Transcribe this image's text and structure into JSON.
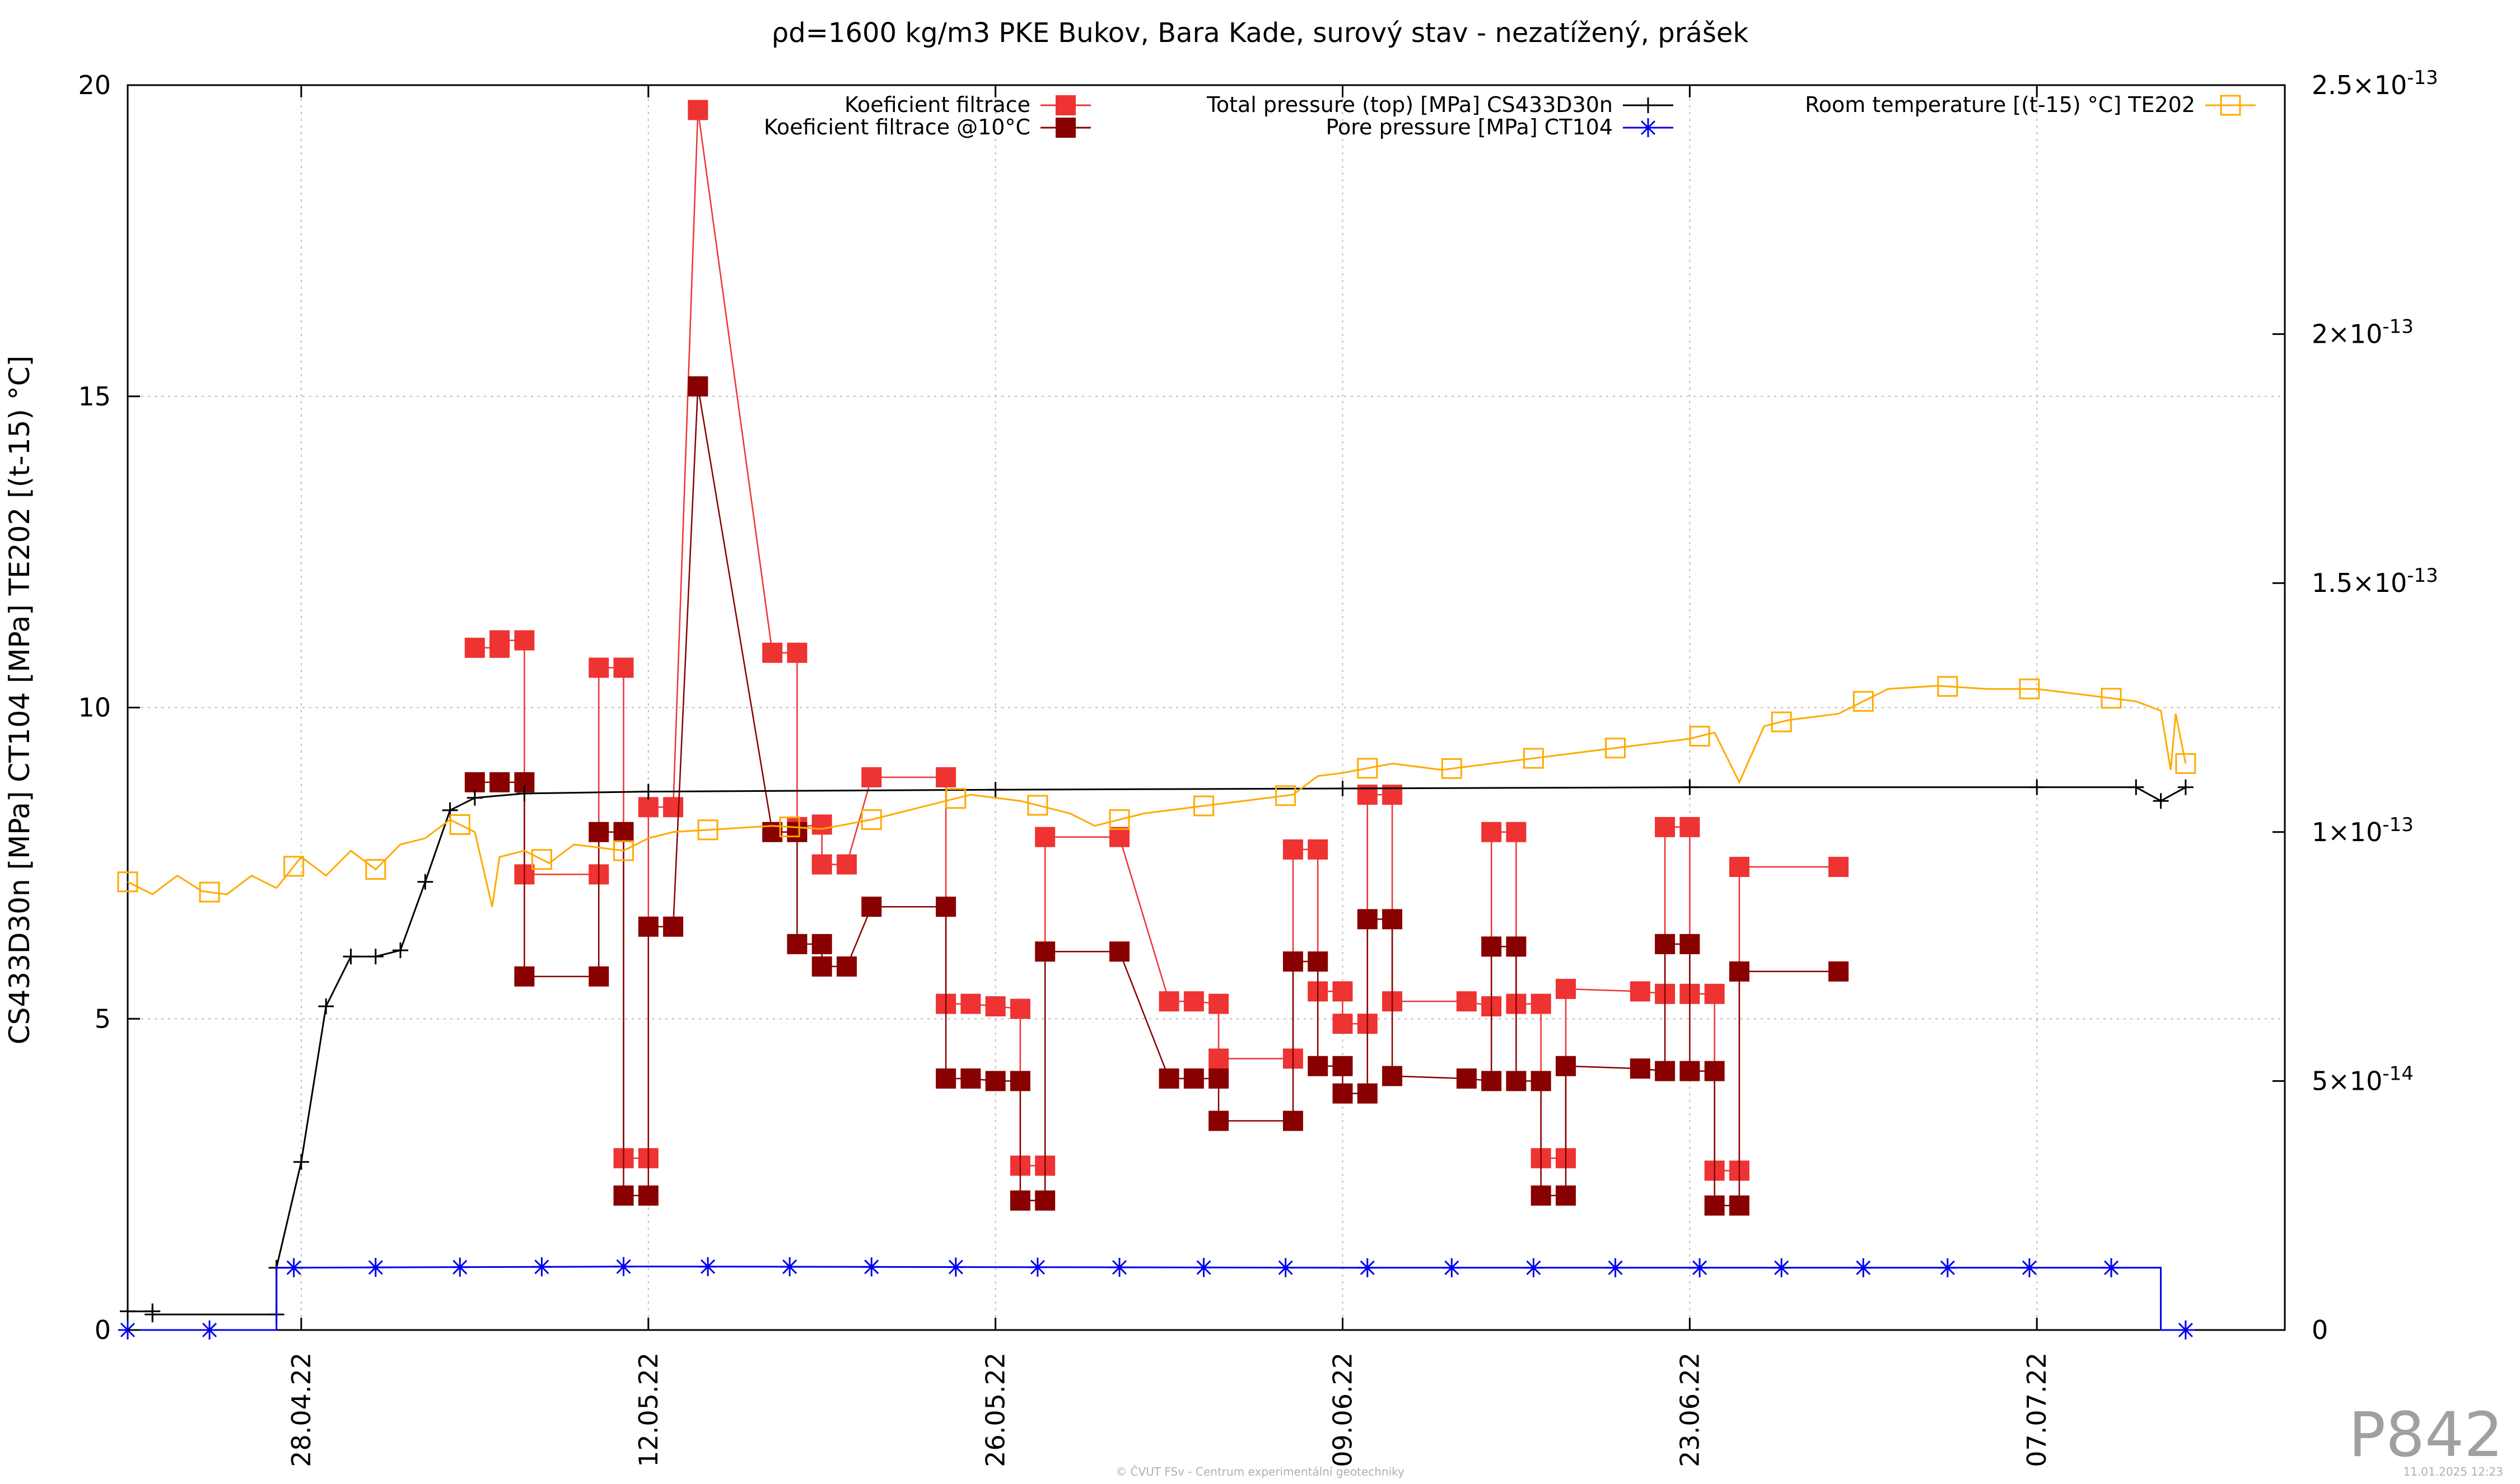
{
  "chart_data": {
    "type": "line",
    "title": "ρd=1600 kg/m3 PKE Bukov, Bara Kade, surový stav - nezatížený, prášek",
    "xlabel": "",
    "ylabel": "CS433D30n [MPa] CT104 [MPa] TE202 [(t-15) °C]",
    "y2label": "",
    "x_range": [
      "2022-04-21",
      "2022-07-17"
    ],
    "ylim": [
      0,
      20
    ],
    "y2lim": [
      0,
      2.5e-13
    ],
    "x_ticks": [
      {
        "date": "2022-04-28",
        "label": "28.04.22"
      },
      {
        "date": "2022-05-12",
        "label": "12.05.22"
      },
      {
        "date": "2022-05-26",
        "label": "26.05.22"
      },
      {
        "date": "2022-06-09",
        "label": "09.06.22"
      },
      {
        "date": "2022-06-23",
        "label": "23.06.22"
      },
      {
        "date": "2022-07-07",
        "label": "07.07.22"
      }
    ],
    "y_ticks": [
      {
        "value": 0,
        "label": "0"
      },
      {
        "value": 5,
        "label": "5"
      },
      {
        "value": 10,
        "label": "10"
      },
      {
        "value": 15,
        "label": "15"
      },
      {
        "value": 20,
        "label": "20"
      }
    ],
    "y2_ticks": [
      {
        "value": 0,
        "label": "0",
        "exp": ""
      },
      {
        "value": 5e-14,
        "label": "5×10",
        "exp": "-14"
      },
      {
        "value": 1e-13,
        "label": "1×10",
        "exp": "-13"
      },
      {
        "value": 1.5e-13,
        "label": "1.5×10",
        "exp": "-13"
      },
      {
        "value": 2e-13,
        "label": "2×10",
        "exp": "-13"
      },
      {
        "value": 2.5e-13,
        "label": "2.5×10",
        "exp": "-13"
      }
    ],
    "grid": true,
    "legend_placement": "top",
    "series": [
      {
        "name": "Koeficient filtrace",
        "axis": "y2",
        "color": "#ee3333",
        "marker": "filled-square",
        "points": [
          [
            "2022-05-05",
            1.37e-13
          ],
          [
            "2022-05-06",
            1.37e-13
          ],
          [
            "2022-05-06",
            1.385e-13
          ],
          [
            "2022-05-07",
            1.385e-13
          ],
          [
            "2022-05-07",
            9.15e-14
          ],
          [
            "2022-05-10",
            9.15e-14
          ],
          [
            "2022-05-10",
            1.33e-13
          ],
          [
            "2022-05-11",
            1.33e-13
          ],
          [
            "2022-05-11",
            3.45e-14
          ],
          [
            "2022-05-12",
            3.45e-14
          ],
          [
            "2022-05-12",
            1.05e-13
          ],
          [
            "2022-05-13",
            1.05e-13
          ],
          [
            "2022-05-14",
            2.45e-13
          ],
          [
            "2022-05-17",
            1.36e-13
          ],
          [
            "2022-05-18",
            1.36e-13
          ],
          [
            "2022-05-18",
            1.01e-13
          ],
          [
            "2022-05-19",
            1.015e-13
          ],
          [
            "2022-05-19",
            9.35e-14
          ],
          [
            "2022-05-20",
            9.35e-14
          ],
          [
            "2022-05-21",
            1.11e-13
          ],
          [
            "2022-05-24",
            1.11e-13
          ],
          [
            "2022-05-24",
            6.55e-14
          ],
          [
            "2022-05-25",
            6.55e-14
          ],
          [
            "2022-05-26",
            6.5e-14
          ],
          [
            "2022-05-27",
            6.45e-14
          ],
          [
            "2022-05-27",
            3.3e-14
          ],
          [
            "2022-05-28",
            3.3e-14
          ],
          [
            "2022-05-28",
            9.9e-14
          ],
          [
            "2022-05-31",
            9.9e-14
          ],
          [
            "2022-06-02",
            6.6e-14
          ],
          [
            "2022-06-03",
            6.6e-14
          ],
          [
            "2022-06-04",
            6.55e-14
          ],
          [
            "2022-06-04",
            5.45e-14
          ],
          [
            "2022-06-07",
            5.45e-14
          ],
          [
            "2022-06-07",
            9.65e-14
          ],
          [
            "2022-06-08",
            9.65e-14
          ],
          [
            "2022-06-08",
            6.8e-14
          ],
          [
            "2022-06-09",
            6.8e-14
          ],
          [
            "2022-06-09",
            6.15e-14
          ],
          [
            "2022-06-10",
            6.15e-14
          ],
          [
            "2022-06-10",
            1.075e-13
          ],
          [
            "2022-06-11",
            1.075e-13
          ],
          [
            "2022-06-11",
            6.6e-14
          ],
          [
            "2022-06-14",
            6.6e-14
          ],
          [
            "2022-06-15",
            6.5e-14
          ],
          [
            "2022-06-15",
            1e-13
          ],
          [
            "2022-06-16",
            1e-13
          ],
          [
            "2022-06-16",
            6.55e-14
          ],
          [
            "2022-06-17",
            6.55e-14
          ],
          [
            "2022-06-17",
            3.45e-14
          ],
          [
            "2022-06-18",
            3.45e-14
          ],
          [
            "2022-06-18",
            6.85e-14
          ],
          [
            "2022-06-21",
            6.8e-14
          ],
          [
            "2022-06-22",
            6.75e-14
          ],
          [
            "2022-06-22",
            1.01e-13
          ],
          [
            "2022-06-23",
            1.01e-13
          ],
          [
            "2022-06-23",
            6.75e-14
          ],
          [
            "2022-06-24",
            6.75e-14
          ],
          [
            "2022-06-24",
            3.2e-14
          ],
          [
            "2022-06-25",
            3.2e-14
          ],
          [
            "2022-06-25",
            9.3e-14
          ],
          [
            "2022-06-29",
            9.3e-14
          ]
        ]
      },
      {
        "name": "Koeficient filtrace @10°C",
        "axis": "y2",
        "color": "#880000",
        "marker": "filled-square",
        "points": [
          [
            "2022-05-05",
            1.1e-13
          ],
          [
            "2022-05-06",
            1.1e-13
          ],
          [
            "2022-05-07",
            1.1e-13
          ],
          [
            "2022-05-07",
            7.1e-14
          ],
          [
            "2022-05-10",
            7.1e-14
          ],
          [
            "2022-05-10",
            1e-13
          ],
          [
            "2022-05-11",
            1e-13
          ],
          [
            "2022-05-11",
            2.7e-14
          ],
          [
            "2022-05-12",
            2.7e-14
          ],
          [
            "2022-05-12",
            8.1e-14
          ],
          [
            "2022-05-13",
            8.1e-14
          ],
          [
            "2022-05-14",
            1.895e-13
          ],
          [
            "2022-05-17",
            1e-13
          ],
          [
            "2022-05-18",
            1e-13
          ],
          [
            "2022-05-18",
            7.75e-14
          ],
          [
            "2022-05-19",
            7.75e-14
          ],
          [
            "2022-05-19",
            7.3e-14
          ],
          [
            "2022-05-20",
            7.3e-14
          ],
          [
            "2022-05-21",
            8.5e-14
          ],
          [
            "2022-05-24",
            8.5e-14
          ],
          [
            "2022-05-24",
            5.05e-14
          ],
          [
            "2022-05-25",
            5.05e-14
          ],
          [
            "2022-05-26",
            5e-14
          ],
          [
            "2022-05-27",
            5e-14
          ],
          [
            "2022-05-27",
            2.6e-14
          ],
          [
            "2022-05-28",
            2.6e-14
          ],
          [
            "2022-05-28",
            7.6e-14
          ],
          [
            "2022-05-31",
            7.6e-14
          ],
          [
            "2022-06-02",
            5.05e-14
          ],
          [
            "2022-06-03",
            5.05e-14
          ],
          [
            "2022-06-04",
            5.05e-14
          ],
          [
            "2022-06-04",
            4.2e-14
          ],
          [
            "2022-06-07",
            4.2e-14
          ],
          [
            "2022-06-07",
            7.4e-14
          ],
          [
            "2022-06-08",
            7.4e-14
          ],
          [
            "2022-06-08",
            5.3e-14
          ],
          [
            "2022-06-09",
            5.3e-14
          ],
          [
            "2022-06-09",
            4.75e-14
          ],
          [
            "2022-06-10",
            4.75e-14
          ],
          [
            "2022-06-10",
            8.25e-14
          ],
          [
            "2022-06-11",
            8.25e-14
          ],
          [
            "2022-06-11",
            5.1e-14
          ],
          [
            "2022-06-14",
            5.05e-14
          ],
          [
            "2022-06-15",
            5e-14
          ],
          [
            "2022-06-15",
            7.7e-14
          ],
          [
            "2022-06-16",
            7.7e-14
          ],
          [
            "2022-06-16",
            5e-14
          ],
          [
            "2022-06-17",
            5e-14
          ],
          [
            "2022-06-17",
            2.7e-14
          ],
          [
            "2022-06-18",
            2.7e-14
          ],
          [
            "2022-06-18",
            5.3e-14
          ],
          [
            "2022-06-21",
            5.25e-14
          ],
          [
            "2022-06-22",
            5.2e-14
          ],
          [
            "2022-06-22",
            7.75e-14
          ],
          [
            "2022-06-23",
            7.75e-14
          ],
          [
            "2022-06-23",
            5.2e-14
          ],
          [
            "2022-06-24",
            5.2e-14
          ],
          [
            "2022-06-24",
            2.5e-14
          ],
          [
            "2022-06-25",
            2.5e-14
          ],
          [
            "2022-06-25",
            7.2e-14
          ],
          [
            "2022-06-29",
            7.2e-14
          ]
        ]
      },
      {
        "name": "Total pressure (top) [MPa] CS433D30n",
        "axis": "y1",
        "color": "#000000",
        "marker": "plus",
        "points": [
          [
            "2022-04-21",
            0.3
          ],
          [
            "2022-04-22",
            0.3
          ],
          [
            "2022-04-22",
            0.25
          ],
          [
            "2022-04-27",
            0.25
          ],
          [
            "2022-04-27",
            1.0
          ],
          [
            "2022-04-28",
            2.7
          ],
          [
            "2022-04-29",
            5.2
          ],
          [
            "2022-04-30",
            6.0
          ],
          [
            "2022-05-01",
            6.0
          ],
          [
            "2022-05-02",
            6.1
          ],
          [
            "2022-05-03",
            7.2
          ],
          [
            "2022-05-04",
            8.35
          ],
          [
            "2022-05-05",
            8.55
          ],
          [
            "2022-05-07",
            8.62
          ],
          [
            "2022-05-12",
            8.65
          ],
          [
            "2022-05-26",
            8.68
          ],
          [
            "2022-06-09",
            8.7
          ],
          [
            "2022-06-23",
            8.72
          ],
          [
            "2022-07-07",
            8.72
          ],
          [
            "2022-07-11",
            8.72
          ],
          [
            "2022-07-12",
            8.5
          ],
          [
            "2022-07-13",
            8.72
          ]
        ]
      },
      {
        "name": "Pore pressure [MPa] CT104",
        "axis": "y1",
        "color": "#0000ee",
        "marker": "star",
        "points": [
          [
            "2022-04-21",
            0.0
          ],
          [
            "2022-04-27",
            0.0
          ],
          [
            "2022-04-27",
            1.0
          ],
          [
            "2022-05-12",
            1.02
          ],
          [
            "2022-05-26",
            1.01
          ],
          [
            "2022-06-09",
            1.0
          ],
          [
            "2022-06-23",
            1.0
          ],
          [
            "2022-07-12",
            1.0
          ],
          [
            "2022-07-12",
            0.0
          ],
          [
            "2022-07-13",
            0.0
          ]
        ],
        "markers": [
          "2022-04-21",
          "2022-04-24.3",
          "2022-04-27.7",
          "2022-05-01",
          "2022-05-04.4",
          "2022-05-07.7",
          "2022-05-11",
          "2022-05-14.4",
          "2022-05-17.7",
          "2022-05-21",
          "2022-05-24.4",
          "2022-05-27.7",
          "2022-05-31",
          "2022-06-03.4",
          "2022-06-06.7",
          "2022-06-10",
          "2022-06-13.4",
          "2022-06-16.7",
          "2022-06-20",
          "2022-06-23.4",
          "2022-06-26.7",
          "2022-06-30",
          "2022-07-03.4",
          "2022-07-06.7",
          "2022-07-10",
          "2022-07-13"
        ]
      },
      {
        "name": "Room temperature [(t-15) °C] TE202",
        "axis": "y1",
        "color": "#ffaa00",
        "marker": "open-square",
        "points": [
          [
            "2022-04-21",
            7.2
          ],
          [
            "2022-04-22",
            7.0
          ],
          [
            "2022-04-23",
            7.3
          ],
          [
            "2022-04-24",
            7.05
          ],
          [
            "2022-04-25",
            7.0
          ],
          [
            "2022-04-26",
            7.3
          ],
          [
            "2022-04-27",
            7.1
          ],
          [
            "2022-04-28",
            7.6
          ],
          [
            "2022-04-29",
            7.3
          ],
          [
            "2022-04-30",
            7.7
          ],
          [
            "2022-05-01",
            7.4
          ],
          [
            "2022-05-02",
            7.8
          ],
          [
            "2022-05-03",
            7.9
          ],
          [
            "2022-05-04",
            8.2
          ],
          [
            "2022-05-05",
            8.0
          ],
          [
            "2022-05-05.7",
            6.8
          ],
          [
            "2022-05-06",
            7.6
          ],
          [
            "2022-05-07",
            7.7
          ],
          [
            "2022-05-08",
            7.5
          ],
          [
            "2022-05-09",
            7.8
          ],
          [
            "2022-05-11",
            7.7
          ],
          [
            "2022-05-12",
            7.9
          ],
          [
            "2022-05-13",
            8.0
          ],
          [
            "2022-05-15",
            8.05
          ],
          [
            "2022-05-17",
            8.1
          ],
          [
            "2022-05-19",
            8.05
          ],
          [
            "2022-05-21",
            8.2
          ],
          [
            "2022-05-23",
            8.4
          ],
          [
            "2022-05-25",
            8.6
          ],
          [
            "2022-05-27",
            8.5
          ],
          [
            "2022-05-29",
            8.3
          ],
          [
            "2022-05-30",
            8.1
          ],
          [
            "2022-06-01",
            8.3
          ],
          [
            "2022-06-03",
            8.4
          ],
          [
            "2022-06-05",
            8.5
          ],
          [
            "2022-06-07",
            8.6
          ],
          [
            "2022-06-08",
            8.9
          ],
          [
            "2022-06-09",
            8.95
          ],
          [
            "2022-06-11",
            9.1
          ],
          [
            "2022-06-13",
            9.0
          ],
          [
            "2022-06-15",
            9.1
          ],
          [
            "2022-06-17",
            9.2
          ],
          [
            "2022-06-19",
            9.3
          ],
          [
            "2022-06-21",
            9.4
          ],
          [
            "2022-06-23",
            9.5
          ],
          [
            "2022-06-24",
            9.6
          ],
          [
            "2022-06-25",
            8.8
          ],
          [
            "2022-06-26",
            9.7
          ],
          [
            "2022-06-27",
            9.8
          ],
          [
            "2022-06-29",
            9.9
          ],
          [
            "2022-06-30",
            10.1
          ],
          [
            "2022-07-01",
            10.3
          ],
          [
            "2022-07-03",
            10.35
          ],
          [
            "2022-07-05",
            10.3
          ],
          [
            "2022-07-07",
            10.3
          ],
          [
            "2022-07-09",
            10.2
          ],
          [
            "2022-07-11",
            10.1
          ],
          [
            "2022-07-12",
            9.95
          ],
          [
            "2022-07-12.4",
            9.0
          ],
          [
            "2022-07-12.6",
            9.9
          ],
          [
            "2022-07-13",
            9.1
          ]
        ],
        "markers": [
          "2022-04-21",
          "2022-04-24.3",
          "2022-04-27.7",
          "2022-05-01",
          "2022-05-04.4",
          "2022-05-07.7",
          "2022-05-11",
          "2022-05-14.4",
          "2022-05-17.7",
          "2022-05-21",
          "2022-05-24.4",
          "2022-05-27.7",
          "2022-05-31",
          "2022-06-03.4",
          "2022-06-06.7",
          "2022-06-10",
          "2022-06-13.4",
          "2022-06-16.7",
          "2022-06-20",
          "2022-06-23.4",
          "2022-06-26.7",
          "2022-06-30",
          "2022-07-03.4",
          "2022-07-06.7",
          "2022-07-10",
          "2022-07-13"
        ]
      }
    ]
  },
  "watermark": "P842",
  "footer": {
    "credit": "© ČVUT FSv - Centrum experimentální geotechniky",
    "timestamp": "11.01.2025 12:23"
  }
}
